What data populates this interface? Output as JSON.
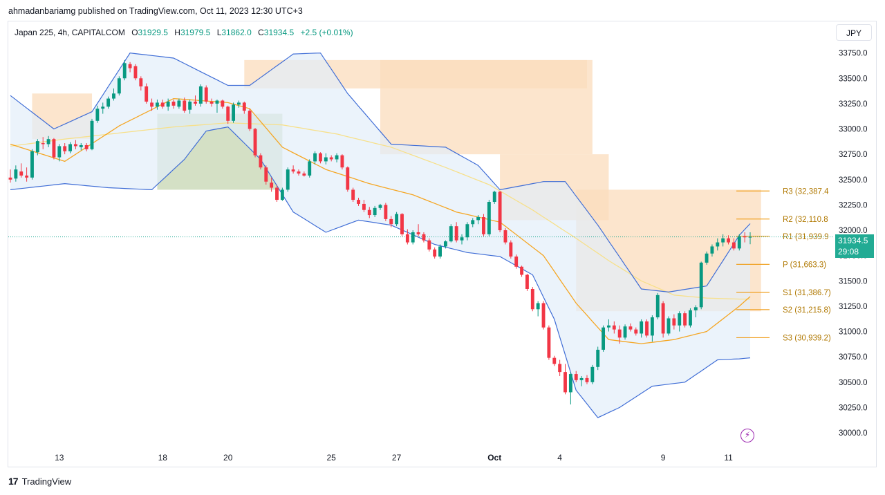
{
  "attribution": "ahmadanbariamg published on TradingView.com, Oct 11, 2023 12:30 UTC+3",
  "legend": {
    "symbol": "Japan 225, 4h, CAPITALCOM",
    "open_label": "O",
    "open": "31929.5",
    "high_label": "H",
    "high": "31979.5",
    "low_label": "L",
    "low": "31862.0",
    "close_label": "C",
    "close": "31934.5",
    "change": "+2.5 (+0.01%)"
  },
  "currency": "JPY",
  "last_price": {
    "value": "31934.5",
    "countdown": "29:08"
  },
  "footer": {
    "logo_mark": "17",
    "logo_text": "TradingView"
  },
  "colors": {
    "up": "#089981",
    "down": "#f23645",
    "bollinger": "#3f6dd6",
    "band_fill": "#e3eefa",
    "ema_fast": "#f5a623",
    "ema_slow": "#f7e08a",
    "supply_zone": "#fbdcbc",
    "demand_zone": "#c9d8b6",
    "pivot": "#f0a020"
  },
  "chart_data": {
    "type": "candlestick",
    "title": "Japan 225, 4h, CAPITALCOM",
    "ylim": [
      29850,
      33850
    ],
    "y_ticks": [
      "33750.0",
      "33500.0",
      "33250.0",
      "33000.0",
      "32750.0",
      "32500.0",
      "32250.0",
      "32000.0",
      "31750.0",
      "31500.0",
      "31250.0",
      "31000.0",
      "30750.0",
      "30500.0",
      "30250.0",
      "30000.0"
    ],
    "x_ticks": [
      {
        "i": 9,
        "label": "13"
      },
      {
        "i": 28,
        "label": "18"
      },
      {
        "i": 40,
        "label": "20"
      },
      {
        "i": 59,
        "label": "25"
      },
      {
        "i": 71,
        "label": "27"
      },
      {
        "i": 89,
        "label": "Oct"
      },
      {
        "i": 101,
        "label": "4"
      },
      {
        "i": 120,
        "label": "9"
      },
      {
        "i": 132,
        "label": "11"
      }
    ],
    "candles_ohlc": [
      [
        32520,
        32600,
        32470,
        32500
      ],
      [
        32510,
        32640,
        32480,
        32600
      ],
      [
        32580,
        32660,
        32520,
        32540
      ],
      [
        32540,
        32620,
        32480,
        32520
      ],
      [
        32520,
        32800,
        32500,
        32780
      ],
      [
        32770,
        32900,
        32740,
        32880
      ],
      [
        32860,
        32920,
        32800,
        32850
      ],
      [
        32850,
        32930,
        32820,
        32900
      ],
      [
        32900,
        32910,
        32700,
        32720
      ],
      [
        32720,
        32850,
        32680,
        32830
      ],
      [
        32830,
        32860,
        32750,
        32780
      ],
      [
        32780,
        32870,
        32760,
        32850
      ],
      [
        32850,
        32890,
        32800,
        32830
      ],
      [
        32820,
        32860,
        32790,
        32840
      ],
      [
        32840,
        32860,
        32780,
        32800
      ],
      [
        32800,
        33100,
        32790,
        33080
      ],
      [
        33080,
        33230,
        33060,
        33200
      ],
      [
        33200,
        33260,
        33150,
        33220
      ],
      [
        33220,
        33320,
        33200,
        33300
      ],
      [
        33300,
        33400,
        33280,
        33350
      ],
      [
        33350,
        33520,
        33330,
        33500
      ],
      [
        33500,
        33680,
        33480,
        33650
      ],
      [
        33640,
        33660,
        33560,
        33600
      ],
      [
        33620,
        33640,
        33480,
        33500
      ],
      [
        33500,
        33520,
        33380,
        33420
      ],
      [
        33420,
        33450,
        33250,
        33270
      ],
      [
        33260,
        33300,
        33180,
        33220
      ],
      [
        33220,
        33290,
        33190,
        33260
      ],
      [
        33260,
        33290,
        33200,
        33220
      ],
      [
        33220,
        33300,
        33180,
        33270
      ],
      [
        33270,
        33290,
        33200,
        33230
      ],
      [
        33220,
        33300,
        33200,
        33280
      ],
      [
        33280,
        33310,
        33160,
        33180
      ],
      [
        33190,
        33290,
        33150,
        33270
      ],
      [
        33270,
        33330,
        33230,
        33250
      ],
      [
        33250,
        33440,
        33220,
        33420
      ],
      [
        33410,
        33430,
        33250,
        33270
      ],
      [
        33270,
        33300,
        33220,
        33250
      ],
      [
        33250,
        33290,
        33160,
        33280
      ],
      [
        33280,
        33290,
        33200,
        33220
      ],
      [
        33220,
        33230,
        33050,
        33080
      ],
      [
        33080,
        33260,
        33060,
        33240
      ],
      [
        33240,
        33280,
        33210,
        33260
      ],
      [
        33260,
        33270,
        33150,
        33180
      ],
      [
        33180,
        33200,
        32980,
        33000
      ],
      [
        33000,
        33010,
        32720,
        32740
      ],
      [
        32740,
        32760,
        32600,
        32620
      ],
      [
        32620,
        32640,
        32450,
        32480
      ],
      [
        32470,
        32520,
        32380,
        32420
      ],
      [
        32420,
        32450,
        32280,
        32300
      ],
      [
        32300,
        32420,
        32290,
        32400
      ],
      [
        32400,
        32620,
        32380,
        32600
      ],
      [
        32600,
        32640,
        32560,
        32580
      ],
      [
        32580,
        32600,
        32540,
        32560
      ],
      [
        32560,
        32580,
        32530,
        32540
      ],
      [
        32540,
        32700,
        32520,
        32680
      ],
      [
        32680,
        32780,
        32650,
        32760
      ],
      [
        32760,
        32770,
        32660,
        32680
      ],
      [
        32680,
        32760,
        32650,
        32720
      ],
      [
        32720,
        32740,
        32680,
        32700
      ],
      [
        32700,
        32760,
        32670,
        32740
      ],
      [
        32740,
        32750,
        32600,
        32620
      ],
      [
        32620,
        32630,
        32380,
        32400
      ],
      [
        32400,
        32420,
        32280,
        32300
      ],
      [
        32300,
        32320,
        32240,
        32260
      ],
      [
        32260,
        32300,
        32180,
        32200
      ],
      [
        32200,
        32230,
        32120,
        32150
      ],
      [
        32150,
        32240,
        32130,
        32220
      ],
      [
        32220,
        32260,
        32200,
        32250
      ],
      [
        32250,
        32270,
        32090,
        32110
      ],
      [
        32110,
        32140,
        32030,
        32060
      ],
      [
        32060,
        32180,
        32040,
        32160
      ],
      [
        32160,
        32170,
        31940,
        31960
      ],
      [
        31960,
        32010,
        31860,
        31880
      ],
      [
        31880,
        32000,
        31860,
        31980
      ],
      [
        31980,
        32060,
        31940,
        31960
      ],
      [
        31960,
        31980,
        31880,
        31900
      ],
      [
        31900,
        31920,
        31790,
        31810
      ],
      [
        31810,
        31830,
        31720,
        31740
      ],
      [
        31740,
        31860,
        31720,
        31840
      ],
      [
        31840,
        31900,
        31820,
        31890
      ],
      [
        31890,
        32060,
        31880,
        32040
      ],
      [
        32040,
        32080,
        31880,
        31900
      ],
      [
        31900,
        31960,
        31860,
        31930
      ],
      [
        31930,
        32080,
        31900,
        32060
      ],
      [
        32060,
        32120,
        32030,
        32100
      ],
      [
        32100,
        32150,
        32060,
        32130
      ],
      [
        32130,
        32160,
        31940,
        31960
      ],
      [
        31960,
        32300,
        31940,
        32280
      ],
      [
        32280,
        32390,
        32260,
        32380
      ],
      [
        32380,
        32390,
        31980,
        32000
      ],
      [
        32000,
        32020,
        31860,
        31880
      ],
      [
        31880,
        31900,
        31720,
        31740
      ],
      [
        31740,
        31760,
        31620,
        31640
      ],
      [
        31640,
        31650,
        31540,
        31560
      ],
      [
        31560,
        31570,
        31400,
        31420
      ],
      [
        31420,
        31440,
        31200,
        31220
      ],
      [
        31220,
        31300,
        31150,
        31280
      ],
      [
        31280,
        31300,
        31020,
        31040
      ],
      [
        31040,
        31060,
        30720,
        30740
      ],
      [
        30740,
        30760,
        30660,
        30680
      ],
      [
        30680,
        30720,
        30560,
        30600
      ],
      [
        30600,
        30680,
        30380,
        30400
      ],
      [
        30400,
        30600,
        30280,
        30580
      ],
      [
        30580,
        30610,
        30500,
        30520
      ],
      [
        30520,
        30560,
        30460,
        30540
      ],
      [
        30540,
        30570,
        30480,
        30500
      ],
      [
        30500,
        30670,
        30480,
        30650
      ],
      [
        30650,
        30850,
        30620,
        30820
      ],
      [
        30820,
        31060,
        30800,
        31040
      ],
      [
        31040,
        31120,
        31000,
        31060
      ],
      [
        31060,
        31100,
        30980,
        31020
      ],
      [
        31020,
        31060,
        30880,
        30940
      ],
      [
        30940,
        31070,
        30920,
        31050
      ],
      [
        31050,
        31080,
        31000,
        31020
      ],
      [
        31020,
        31040,
        30960,
        30980
      ],
      [
        30980,
        31120,
        30940,
        31100
      ],
      [
        31100,
        31120,
        30940,
        30960
      ],
      [
        30960,
        31160,
        30900,
        31140
      ],
      [
        31140,
        31380,
        31120,
        31360
      ],
      [
        31280,
        31300,
        30940,
        30980
      ],
      [
        30980,
        31150,
        30960,
        31130
      ],
      [
        31130,
        31170,
        31020,
        31060
      ],
      [
        31060,
        31200,
        31000,
        31180
      ],
      [
        31180,
        31200,
        31040,
        31060
      ],
      [
        31060,
        31230,
        31040,
        31210
      ],
      [
        31210,
        31260,
        31140,
        31240
      ],
      [
        31240,
        31690,
        31220,
        31680
      ],
      [
        31680,
        31790,
        31660,
        31770
      ],
      [
        31770,
        31860,
        31740,
        31840
      ],
      [
        31840,
        31920,
        31800,
        31880
      ],
      [
        31880,
        31960,
        31840,
        31920
      ],
      [
        31920,
        31950,
        31860,
        31880
      ],
      [
        31880,
        31920,
        31800,
        31820
      ],
      [
        31820,
        31960,
        31800,
        31940
      ],
      [
        31940,
        31980,
        31880,
        31930
      ],
      [
        31929.5,
        31979.5,
        31862,
        31934.5
      ]
    ],
    "pivot_levels": [
      {
        "name": "R3",
        "label": "R3 (32,387.4",
        "value": 32387.4
      },
      {
        "name": "R2",
        "label": "R2 (32,110.8",
        "value": 32110.8
      },
      {
        "name": "R1",
        "label": "R1 (31,939.9",
        "value": 31939.9
      },
      {
        "name": "P",
        "label": "P (31,663.3)",
        "value": 31663.3
      },
      {
        "name": "S1",
        "label": "S1 (31,386.7)",
        "value": 31386.7
      },
      {
        "name": "S2",
        "label": "S2 (31,215.8)",
        "value": 31215.8
      },
      {
        "name": "S3",
        "label": "S3 (30,939.2)",
        "value": 30939.2
      }
    ],
    "zones": [
      {
        "kind": "supply",
        "i0": 4,
        "i1": 15,
        "y0": 32900,
        "y1": 33350
      },
      {
        "kind": "supply",
        "i0": 43,
        "i1": 106,
        "y0": 33400,
        "y1": 33680
      },
      {
        "kind": "supply",
        "i0": 68,
        "i1": 107,
        "y0": 32750,
        "y1": 33680
      },
      {
        "kind": "supply",
        "i0": 90,
        "i1": 110,
        "y0": 32100,
        "y1": 32750
      },
      {
        "kind": "supply",
        "i0": 104,
        "i1": 138,
        "y0": 31200,
        "y1": 32400
      },
      {
        "kind": "demand",
        "i0": 27,
        "i1": 50,
        "y0": 32400,
        "y1": 33150
      }
    ],
    "bollinger": {
      "upper": [
        [
          0,
          33330
        ],
        [
          8,
          33000
        ],
        [
          15,
          33170
        ],
        [
          22,
          33750
        ],
        [
          30,
          33700
        ],
        [
          40,
          33430
        ],
        [
          44,
          33430
        ],
        [
          52,
          33740
        ],
        [
          57,
          33750
        ],
        [
          62,
          33350
        ],
        [
          70,
          32850
        ],
        [
          80,
          32820
        ],
        [
          86,
          32640
        ],
        [
          90,
          32400
        ],
        [
          98,
          32480
        ],
        [
          102,
          32480
        ],
        [
          108,
          32050
        ],
        [
          116,
          31420
        ],
        [
          121,
          31390
        ],
        [
          128,
          31450
        ],
        [
          134,
          31950
        ],
        [
          138,
          32180
        ]
      ],
      "basis": [
        [
          0,
          32850
        ],
        [
          10,
          32680
        ],
        [
          20,
          33030
        ],
        [
          30,
          33300
        ],
        [
          40,
          33260
        ],
        [
          44,
          33200
        ],
        [
          50,
          32820
        ],
        [
          58,
          32600
        ],
        [
          66,
          32460
        ],
        [
          74,
          32350
        ],
        [
          82,
          32180
        ],
        [
          90,
          32080
        ],
        [
          98,
          31750
        ],
        [
          104,
          31280
        ],
        [
          110,
          30920
        ],
        [
          116,
          30880
        ],
        [
          122,
          30920
        ],
        [
          128,
          31000
        ],
        [
          134,
          31250
        ],
        [
          138,
          31440
        ]
      ],
      "lower": [
        [
          0,
          32400
        ],
        [
          10,
          32460
        ],
        [
          18,
          32420
        ],
        [
          26,
          32400
        ],
        [
          32,
          32700
        ],
        [
          36,
          32980
        ],
        [
          40,
          33020
        ],
        [
          46,
          32700
        ],
        [
          52,
          32180
        ],
        [
          58,
          31980
        ],
        [
          64,
          32100
        ],
        [
          70,
          32050
        ],
        [
          78,
          31860
        ],
        [
          84,
          31780
        ],
        [
          90,
          31740
        ],
        [
          96,
          31560
        ],
        [
          100,
          31120
        ],
        [
          104,
          30420
        ],
        [
          108,
          30150
        ],
        [
          112,
          30250
        ],
        [
          118,
          30460
        ],
        [
          124,
          30500
        ],
        [
          130,
          30720
        ],
        [
          134,
          30730
        ],
        [
          138,
          30750
        ]
      ]
    },
    "ema_slow": [
      [
        0,
        32830
      ],
      [
        10,
        32900
      ],
      [
        20,
        32960
      ],
      [
        30,
        33020
      ],
      [
        40,
        33060
      ],
      [
        50,
        33040
      ],
      [
        60,
        32950
      ],
      [
        70,
        32820
      ],
      [
        80,
        32620
      ],
      [
        88,
        32450
      ],
      [
        96,
        32200
      ],
      [
        104,
        31920
      ],
      [
        110,
        31700
      ],
      [
        116,
        31500
      ],
      [
        122,
        31360
      ],
      [
        128,
        31330
      ],
      [
        134,
        31320
      ],
      [
        138,
        31320
      ]
    ]
  }
}
